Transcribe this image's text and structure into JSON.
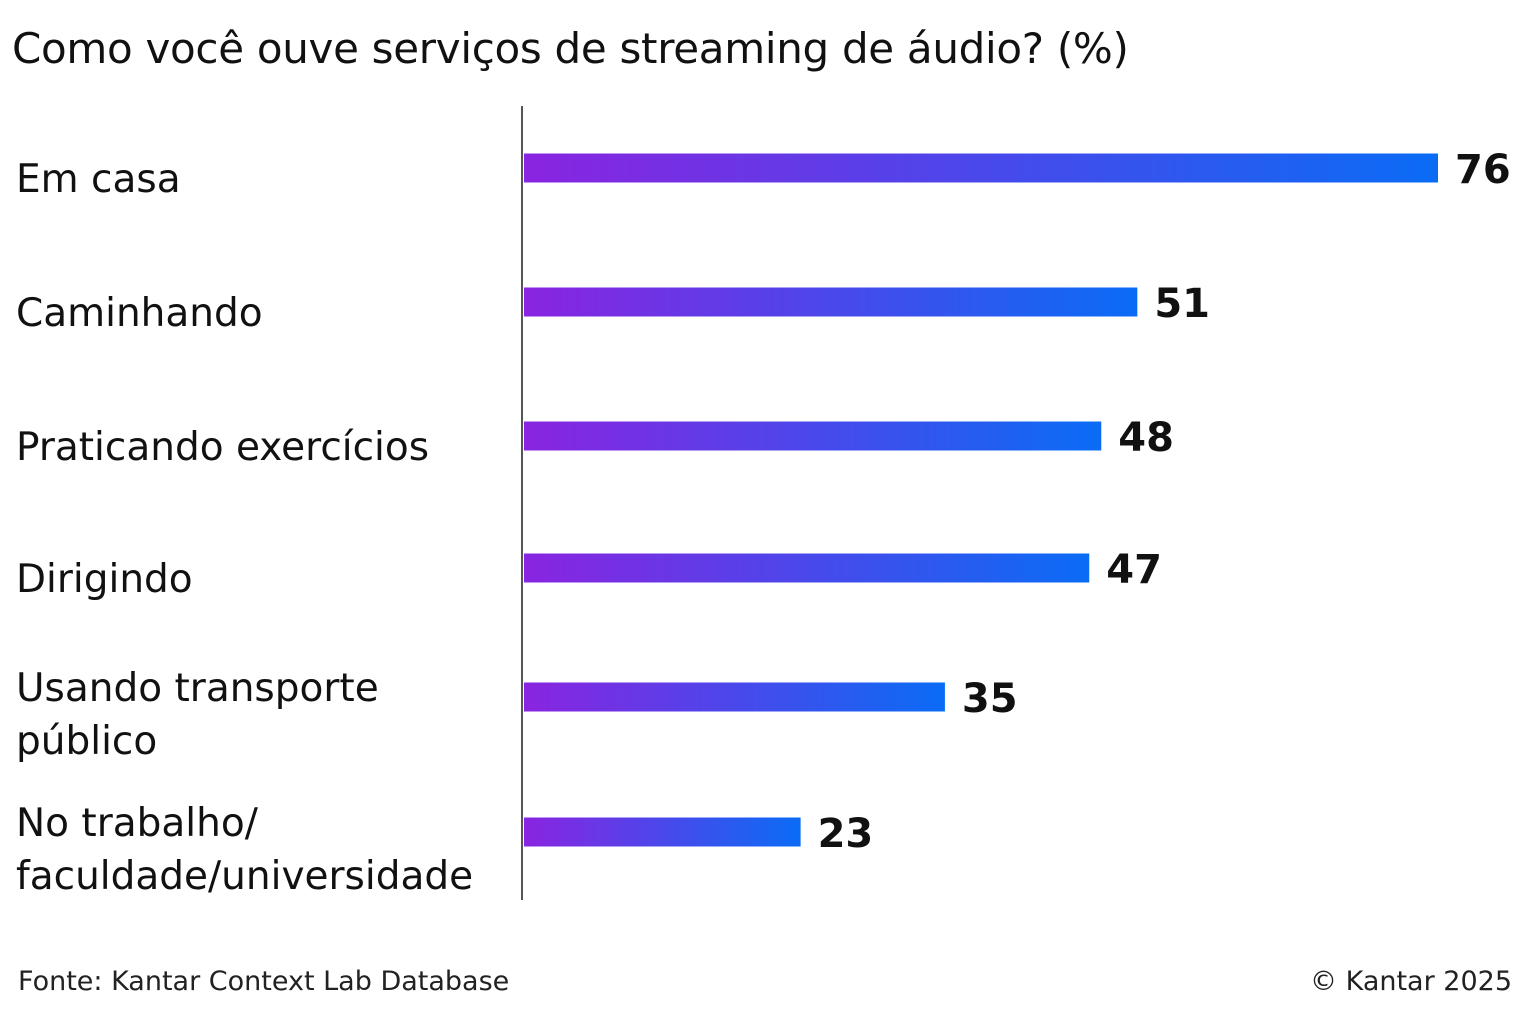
{
  "chart_data": {
    "type": "bar",
    "orientation": "horizontal",
    "title": "Como você ouve serviços de streaming de áudio? (%)",
    "categories": [
      [
        "Em casa"
      ],
      [
        "Caminhando"
      ],
      [
        "Praticando exercícios"
      ],
      [
        "Dirigindo"
      ],
      [
        "Usando transporte",
        "público"
      ],
      [
        "No trabalho/",
        "faculdade/universidade"
      ]
    ],
    "values": [
      76,
      51,
      48,
      47,
      35,
      23
    ],
    "xlim": [
      0,
      76
    ],
    "grid": false,
    "legend": "none",
    "bar_gradient": [
      "#8a24e0",
      "#0a6cf5"
    ],
    "axis_color": "#555555"
  },
  "footer": {
    "source": "Fonte: Kantar Context Lab Database",
    "copyright": "© Kantar 2025"
  }
}
